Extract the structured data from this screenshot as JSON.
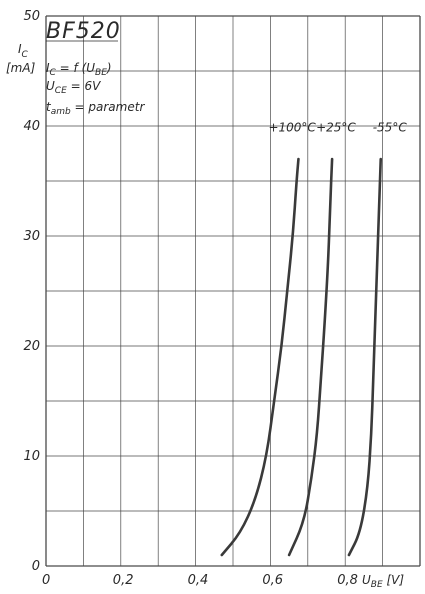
{
  "chart_data": {
    "type": "line",
    "title": "BF520",
    "annotations": [
      "I_C = f(U_BE)",
      "U_CE = 6V",
      "t_amb = parametr"
    ],
    "xlabel": "U_BE [V]",
    "ylabel": "I_C [mA]",
    "xlim": [
      0,
      1.0
    ],
    "ylim": [
      0,
      50
    ],
    "x_ticks": [
      "0",
      "0,2",
      "0,4",
      "0,6",
      "0,8"
    ],
    "y_ticks": [
      "0",
      "10",
      "20",
      "30",
      "40",
      "50"
    ],
    "grid": true,
    "series": [
      {
        "name": "+100°C",
        "points": [
          [
            0.47,
            1
          ],
          [
            0.52,
            3
          ],
          [
            0.56,
            6
          ],
          [
            0.59,
            10
          ],
          [
            0.61,
            15
          ],
          [
            0.63,
            20
          ],
          [
            0.645,
            25
          ],
          [
            0.66,
            30
          ],
          [
            0.67,
            35
          ],
          [
            0.675,
            37
          ]
        ]
      },
      {
        "name": "+25°C",
        "points": [
          [
            0.65,
            1
          ],
          [
            0.69,
            4
          ],
          [
            0.71,
            8
          ],
          [
            0.725,
            12
          ],
          [
            0.735,
            17
          ],
          [
            0.745,
            22
          ],
          [
            0.755,
            28
          ],
          [
            0.76,
            33
          ],
          [
            0.765,
            37
          ]
        ]
      },
      {
        "name": "-55°C",
        "points": [
          [
            0.81,
            1
          ],
          [
            0.84,
            3
          ],
          [
            0.86,
            7
          ],
          [
            0.87,
            12
          ],
          [
            0.875,
            17
          ],
          [
            0.88,
            22
          ],
          [
            0.885,
            27
          ],
          [
            0.89,
            32
          ],
          [
            0.895,
            37
          ]
        ]
      }
    ]
  },
  "labels": {
    "title": "BF520",
    "ylabel_top": "I",
    "ylabel_sub": "C",
    "ylabel_unit": "[mA]",
    "formula": "I",
    "formula_sub": "C",
    "formula_rest": " = f (U",
    "formula_sub2": "BE",
    "formula_end": ")",
    "uce": "U",
    "uce_sub": "CE",
    "uce_rest": " = 6V",
    "tamb": "t",
    "tamb_sub": "amb",
    "tamb_rest": " = parametr",
    "xlabel": "U",
    "xlabel_sub": "BE",
    "xlabel_rest": " [V]"
  }
}
